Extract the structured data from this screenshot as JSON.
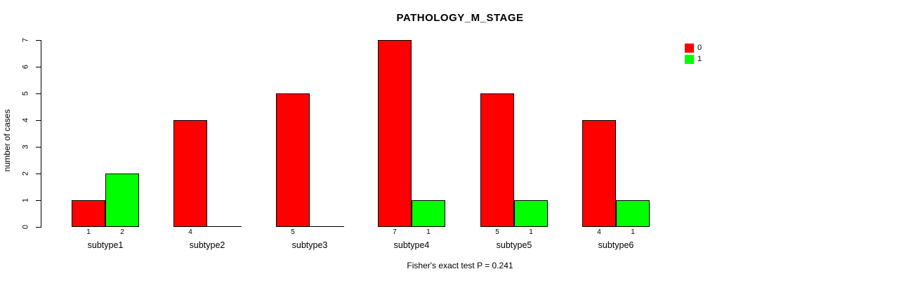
{
  "title": "PATHOLOGY_M_STAGE",
  "footer_note": "Fisher's exact test P = 0.241",
  "y_axis_label": "number of cases",
  "colors": {
    "series0": "#ff0000",
    "series1": "#00ff00",
    "axis": "#000000",
    "background": "#ffffff"
  },
  "chart_data": {
    "type": "bar",
    "title": "PATHOLOGY_M_STAGE",
    "categories": [
      "subtype1",
      "subtype2",
      "subtype3",
      "subtype4",
      "subtype5",
      "subtype6"
    ],
    "series": [
      {
        "name": "0",
        "color": "#ff0000",
        "values": [
          1,
          4,
          5,
          7,
          5,
          4
        ]
      },
      {
        "name": "1",
        "color": "#00ff00",
        "values": [
          2,
          0,
          0,
          1,
          1,
          1
        ]
      }
    ],
    "bar_value_labels": {
      "series0": [
        "1",
        "4",
        "5",
        "7",
        "5",
        "4"
      ],
      "series1": [
        "2",
        "",
        "",
        "1",
        "1",
        "1"
      ]
    },
    "xlabel": "",
    "ylabel": "number of cases",
    "ylim": [
      0,
      7
    ],
    "yticks": [
      0,
      1,
      2,
      3,
      4,
      5,
      6,
      7
    ],
    "grid": false,
    "legend_position": "top-right",
    "legend_entries": [
      "0",
      "1"
    ],
    "annotation": "Fisher's exact test P = 0.241"
  }
}
